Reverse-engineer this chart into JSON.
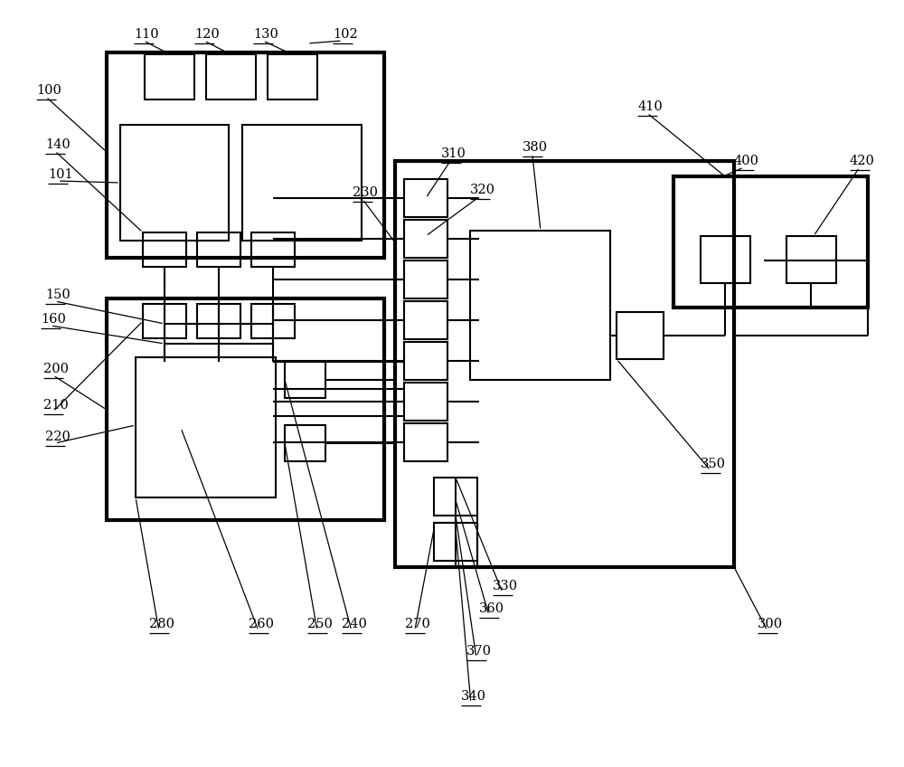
{
  "bg": "#ffffff",
  "lc": "#000000",
  "lw": 1.5,
  "blw": 3.0,
  "fs": 10.5,
  "figw": 10.0,
  "figh": 8.48
}
